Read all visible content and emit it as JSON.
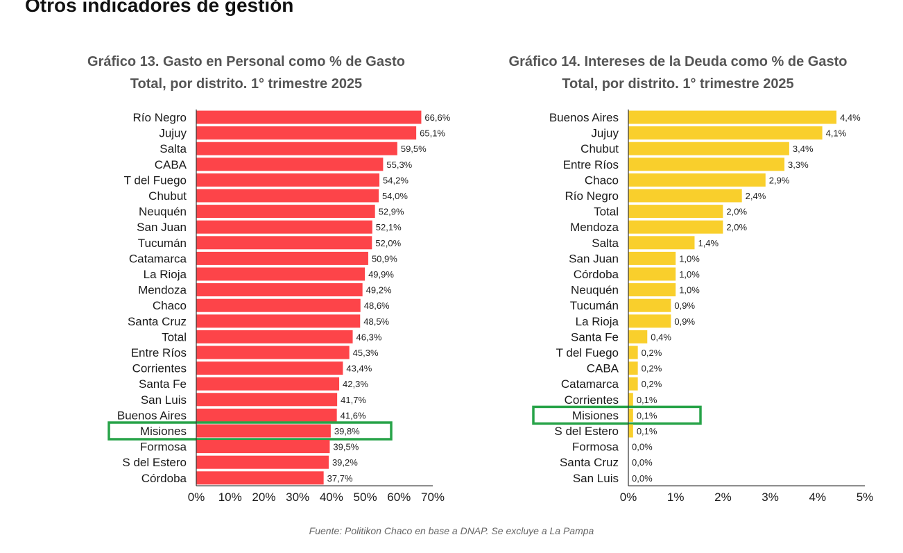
{
  "page_heading": "Otros indicadores de gestión",
  "source_note": "Fuente: Politikon Chaco en base a DNAP. Se excluye a La Pampa",
  "chart_data": [
    {
      "type": "bar",
      "orientation": "horizontal",
      "title": "Gráfico 13. Gasto en Personal como % de Gasto Total, por distrito. 1° trimestre 2025",
      "title_lines": [
        "Gráfico 13. Gasto en Personal como % de Gasto",
        "Total, por distrito. 1° trimestre 2025"
      ],
      "categories": [
        "Río Negro",
        "Jujuy",
        "Salta",
        "CABA",
        "T del Fuego",
        "Chubut",
        "Neuquén",
        "San Juan",
        "Tucumán",
        "Catamarca",
        "La Rioja",
        "Mendoza",
        "Chaco",
        "Santa Cruz",
        "Total",
        "Entre Ríos",
        "Corrientes",
        "Santa Fe",
        "San Luis",
        "Buenos Aires",
        "Misiones",
        "Formosa",
        "S del Estero",
        "Córdoba"
      ],
      "values": [
        66.6,
        65.1,
        59.5,
        55.3,
        54.2,
        54.0,
        52.9,
        52.1,
        52.0,
        50.9,
        49.9,
        49.2,
        48.6,
        48.5,
        46.3,
        45.3,
        43.4,
        42.3,
        41.7,
        41.6,
        39.8,
        39.5,
        39.2,
        37.7
      ],
      "value_labels": [
        "66,6%",
        "65,1%",
        "59,5%",
        "55,3%",
        "54,2%",
        "54,0%",
        "52,9%",
        "52,1%",
        "52,0%",
        "50,9%",
        "49,9%",
        "49,2%",
        "48,6%",
        "48,5%",
        "46,3%",
        "45,3%",
        "43,4%",
        "42,3%",
        "41,7%",
        "41,6%",
        "39,8%",
        "39,5%",
        "39,2%",
        "37,7%"
      ],
      "xlim": [
        0,
        70
      ],
      "x_ticks": [
        "0%",
        "10%",
        "20%",
        "30%",
        "40%",
        "50%",
        "60%",
        "70%"
      ],
      "bar_color": "#fd4449",
      "highlight": "Misiones",
      "highlight_color": "#27a348",
      "grid": false
    },
    {
      "type": "bar",
      "orientation": "horizontal",
      "title": "Gráfico 14. Intereses de la Deuda como % de Gasto Total, por distrito. 1° trimestre 2025",
      "title_lines": [
        "Gráfico 14. Intereses de la Deuda como % de Gasto",
        "Total, por distrito. 1° trimestre 2025"
      ],
      "categories": [
        "Buenos Aires",
        "Jujuy",
        "Chubut",
        "Entre Ríos",
        "Chaco",
        "Río Negro",
        "Total",
        "Mendoza",
        "Salta",
        "San Juan",
        "Córdoba",
        "Neuquén",
        "Tucumán",
        "La Rioja",
        "Santa Fe",
        "T del Fuego",
        "CABA",
        "Catamarca",
        "Corrientes",
        "Misiones",
        "S del Estero",
        "Formosa",
        "Santa Cruz",
        "San Luis"
      ],
      "values": [
        4.4,
        4.1,
        3.4,
        3.3,
        2.9,
        2.4,
        2.0,
        2.0,
        1.4,
        1.0,
        1.0,
        1.0,
        0.9,
        0.9,
        0.4,
        0.2,
        0.2,
        0.2,
        0.1,
        0.1,
        0.1,
        0.0,
        0.0,
        0.0
      ],
      "value_labels": [
        "4,4%",
        "4,1%",
        "3,4%",
        "3,3%",
        "2,9%",
        "2,4%",
        "2,0%",
        "2,0%",
        "1,4%",
        "1,0%",
        "1,0%",
        "1,0%",
        "0,9%",
        "0,9%",
        "0,4%",
        "0,2%",
        "0,2%",
        "0,2%",
        "0,1%",
        "0,1%",
        "0,1%",
        "0,0%",
        "0,0%",
        "0,0%"
      ],
      "xlim": [
        0,
        5
      ],
      "x_ticks": [
        "0%",
        "1%",
        "2%",
        "3%",
        "4%",
        "5%"
      ],
      "bar_color": "#f9cf2c",
      "highlight": "Misiones",
      "highlight_color": "#27a348",
      "grid": false
    }
  ]
}
